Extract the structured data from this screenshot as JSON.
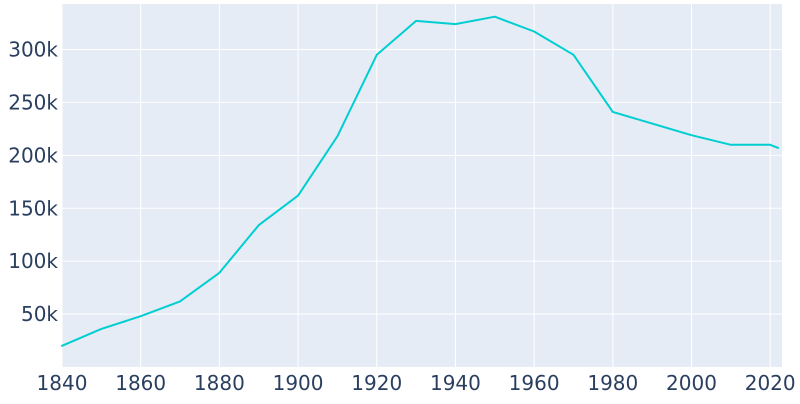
{
  "chart_data": {
    "type": "line",
    "x": [
      1840,
      1850,
      1860,
      1870,
      1880,
      1890,
      1900,
      1910,
      1920,
      1930,
      1940,
      1950,
      1960,
      1970,
      1980,
      1990,
      2000,
      2010,
      2020,
      2022
    ],
    "series": [
      {
        "values": [
          20000,
          36000,
          48000,
          62000,
          89000,
          134000,
          162000,
          218000,
          295000,
          327000,
          324000,
          331000,
          317000,
          295000,
          241000,
          230000,
          219000,
          210000,
          210000,
          207000
        ]
      }
    ],
    "xlim": [
      1840,
      2023
    ],
    "ylim": [
      0,
      343000
    ],
    "xticks": [
      1840,
      1860,
      1880,
      1900,
      1920,
      1940,
      1960,
      1980,
      2000,
      2020
    ],
    "yticks": [
      50000,
      100000,
      150000,
      200000,
      250000,
      300000
    ],
    "xtick_labels": [
      "1840",
      "1860",
      "1880",
      "1900",
      "1920",
      "1940",
      "1960",
      "1980",
      "2000",
      "2020"
    ],
    "ytick_labels": [
      "50k",
      "100k",
      "150k",
      "200k",
      "250k",
      "300k"
    ],
    "title": "",
    "xlabel": "",
    "ylabel": "",
    "grid": true,
    "colors": {
      "line": "#00ced1",
      "plot_background": "#e5ecf6",
      "grid": "#ffffff",
      "text": "#2a3f5f"
    }
  }
}
